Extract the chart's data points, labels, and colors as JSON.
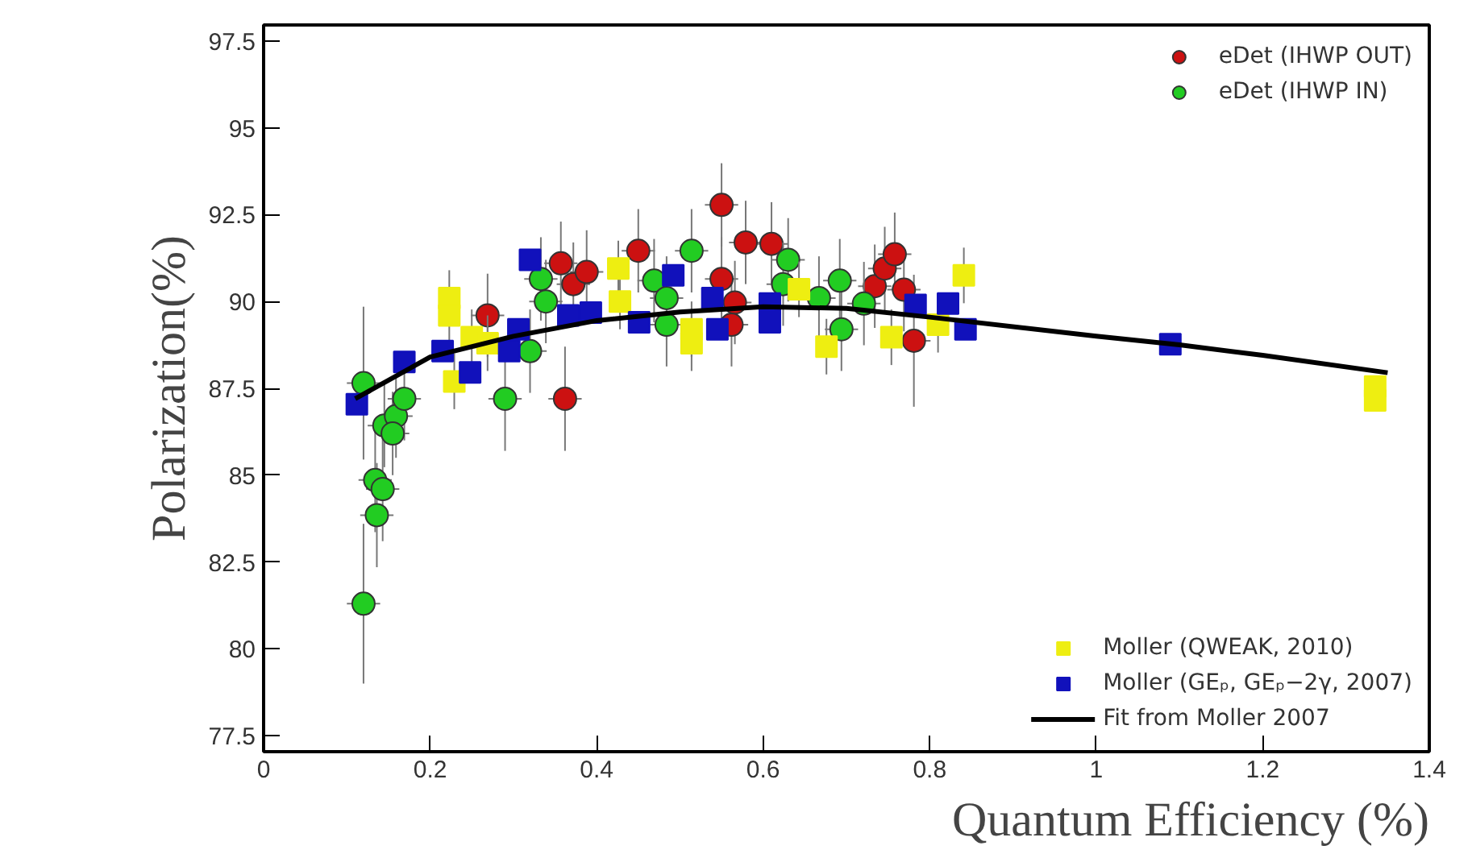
{
  "chart_data": {
    "type": "scatter",
    "xlabel": "Quantum Efficiency (%)",
    "ylabel": "Polarization(%)",
    "xlim": [
      0,
      1.4
    ],
    "ylim": [
      77.04,
      97.96
    ],
    "xticks": [
      0,
      0.2,
      0.4,
      0.6,
      0.8,
      1,
      1.2,
      1.4
    ],
    "yticks": [
      77.5,
      80,
      82.5,
      85,
      87.5,
      90,
      92.5,
      95,
      97.5
    ],
    "grid": false,
    "legend": "right",
    "series": [
      {
        "name": "eDet (IHWP OUT)",
        "color": "#cc1111",
        "marker": "circle",
        "x": [
          0.269,
          0.357,
          0.372,
          0.388,
          0.362,
          0.45,
          0.55,
          0.55,
          0.579,
          0.61,
          0.566,
          0.562,
          0.734,
          0.746,
          0.758,
          0.769,
          0.781
        ],
        "values": [
          89.6,
          91.1,
          90.5,
          90.85,
          87.2,
          91.46,
          92.78,
          90.65,
          91.7,
          91.66,
          89.97,
          89.33,
          90.44,
          90.95,
          91.36,
          90.34,
          88.87
        ],
        "errors": [
          1.2,
          1.2,
          1.2,
          1.2,
          1.5,
          1.2,
          1.2,
          1.2,
          1.2,
          1.2,
          1.2,
          1.2,
          1.2,
          1.2,
          1.2,
          1.2,
          1.9
        ],
        "xerrors": [
          0.02,
          0.02,
          0.02,
          0.02,
          0.02,
          0.02,
          0.02,
          0.02,
          0.02,
          0.02,
          0.02,
          0.02,
          0.02,
          0.02,
          0.02,
          0.02,
          0.02
        ]
      },
      {
        "name": "eDet (IHWP IN)",
        "color": "#22cc22",
        "marker": "circle",
        "x": [
          0.12,
          0.145,
          0.159,
          0.169,
          0.155,
          0.134,
          0.143,
          0.136,
          0.12,
          0.333,
          0.339,
          0.32,
          0.29,
          0.469,
          0.484,
          0.514,
          0.484,
          0.63,
          0.624,
          0.692,
          0.694,
          0.721,
          0.667
        ],
        "values": [
          87.65,
          86.43,
          86.7,
          87.2,
          86.2,
          84.86,
          84.6,
          83.85,
          81.3,
          90.65,
          90.0,
          88.57,
          87.2,
          90.6,
          90.1,
          91.46,
          89.33,
          91.2,
          90.5,
          90.6,
          89.2,
          89.94,
          90.1
        ],
        "errors": [
          2.2,
          1.2,
          1.2,
          1.2,
          1.2,
          1.5,
          1.5,
          1.5,
          2.3,
          1.2,
          1.2,
          1.2,
          1.5,
          1.2,
          1.2,
          1.2,
          1.2,
          1.2,
          1.2,
          1.2,
          1.2,
          1.2,
          1.2
        ],
        "xerrors": [
          0.02,
          0.02,
          0.02,
          0.02,
          0.02,
          0.02,
          0.02,
          0.02,
          0.02,
          0.02,
          0.02,
          0.02,
          0.02,
          0.02,
          0.02,
          0.02,
          0.02,
          0.02,
          0.02,
          0.02,
          0.02,
          0.02,
          0.02
        ]
      },
      {
        "name": "Moller (QWEAK, 2010)",
        "color": "#eeee11",
        "marker": "square",
        "x": [
          0.223,
          0.223,
          0.229,
          0.25,
          0.269,
          0.426,
          0.428,
          0.514,
          0.514,
          0.643,
          0.676,
          0.754,
          0.81,
          0.841,
          1.335,
          1.335
        ],
        "values": [
          90.1,
          89.6,
          87.7,
          88.97,
          88.8,
          90.95,
          90.0,
          89.2,
          88.8,
          90.35,
          88.7,
          88.97,
          89.33,
          90.75,
          87.55,
          87.15
        ],
        "errors": [
          0.8,
          0.8,
          0.8,
          0.8,
          0.8,
          0.8,
          0.8,
          0.8,
          0.8,
          0.8,
          0.8,
          0.8,
          0.8,
          0.8,
          null,
          null
        ]
      },
      {
        "name": "Moller (GEₚ, GEₚ−2γ, 2007)",
        "color": "#1111bb",
        "marker": "square",
        "x": [
          0.112,
          0.169,
          0.215,
          0.248,
          0.295,
          0.306,
          0.32,
          0.366,
          0.393,
          0.451,
          0.492,
          0.539,
          0.545,
          0.608,
          0.608,
          0.783,
          0.822,
          0.843,
          1.089
        ],
        "values": [
          87.04,
          88.26,
          88.57,
          87.96,
          88.57,
          89.2,
          91.2,
          89.6,
          89.68,
          89.4,
          90.75,
          90.1,
          89.2,
          89.94,
          89.4,
          89.9,
          89.94,
          89.2,
          88.77
        ]
      },
      {
        "name": "Fit from Moller 2007",
        "color": "#000000",
        "type": "line",
        "marker": "none",
        "x": [
          0.11,
          0.2,
          0.3,
          0.4,
          0.5,
          0.6,
          0.7,
          0.8,
          1.0,
          1.1,
          1.2,
          1.35
        ],
        "values": [
          87.2,
          88.4,
          89.0,
          89.45,
          89.7,
          89.85,
          89.8,
          89.55,
          89.0,
          88.75,
          88.45,
          87.95
        ]
      }
    ]
  }
}
